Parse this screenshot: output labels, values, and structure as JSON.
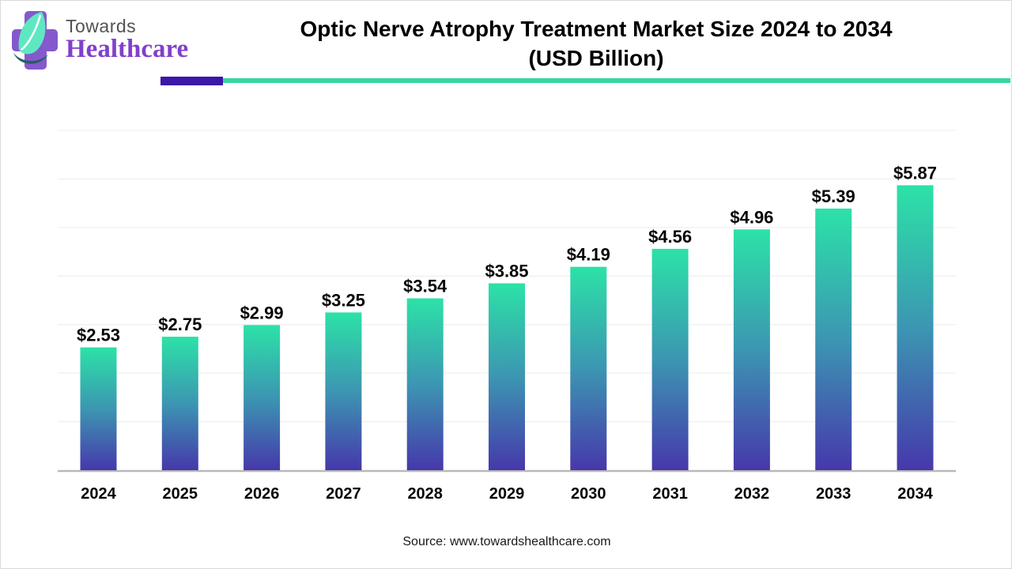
{
  "logo": {
    "brand_top": "Towards",
    "brand_bottom": "Healthcare",
    "colors": {
      "cross": "#8559cc",
      "leaf": "#5fe7c2",
      "swoosh": "#2a5d68",
      "brand_top_text": "#515254",
      "brand_bottom_text": "#8040cb"
    }
  },
  "header": {
    "title_line1": "Optic Nerve Atrophy Treatment Market Size 2024 to 2034",
    "title_line2": "(USD Billion)",
    "divider_purple_color": "#3a18a8",
    "divider_teal_color": "#37d6a3"
  },
  "chart_data": {
    "type": "bar",
    "title": "Optic Nerve Atrophy Treatment Market Size 2024 to 2034 (USD Billion)",
    "categories": [
      "2024",
      "2025",
      "2026",
      "2027",
      "2028",
      "2029",
      "2030",
      "2031",
      "2032",
      "2033",
      "2034"
    ],
    "values": [
      2.53,
      2.75,
      2.99,
      3.25,
      3.54,
      3.85,
      4.19,
      4.56,
      4.96,
      5.39,
      5.87
    ],
    "value_labels": [
      "$2.53",
      "$2.75",
      "$2.99",
      "$3.25",
      "$3.54",
      "$3.85",
      "$4.19",
      "$4.56",
      "$4.96",
      "$5.39",
      "$5.87"
    ],
    "xlabel": "",
    "ylabel": "",
    "unit": "USD Billion",
    "ylim": [
      0,
      7
    ],
    "gridline_step": 1,
    "grid": "horizontal",
    "legend": "none",
    "y_tick_labels_shown": false,
    "colors": {
      "bar_gradient_top": "#2ce2a7",
      "bar_gradient_mid": "#3c96b2",
      "bar_gradient_bottom": "#4638ab",
      "gridline": "#ececec",
      "axis_line": "#b9b9b9",
      "label_text": "#050505"
    }
  },
  "footer": {
    "source": "Source: www.towardshealthcare.com"
  }
}
